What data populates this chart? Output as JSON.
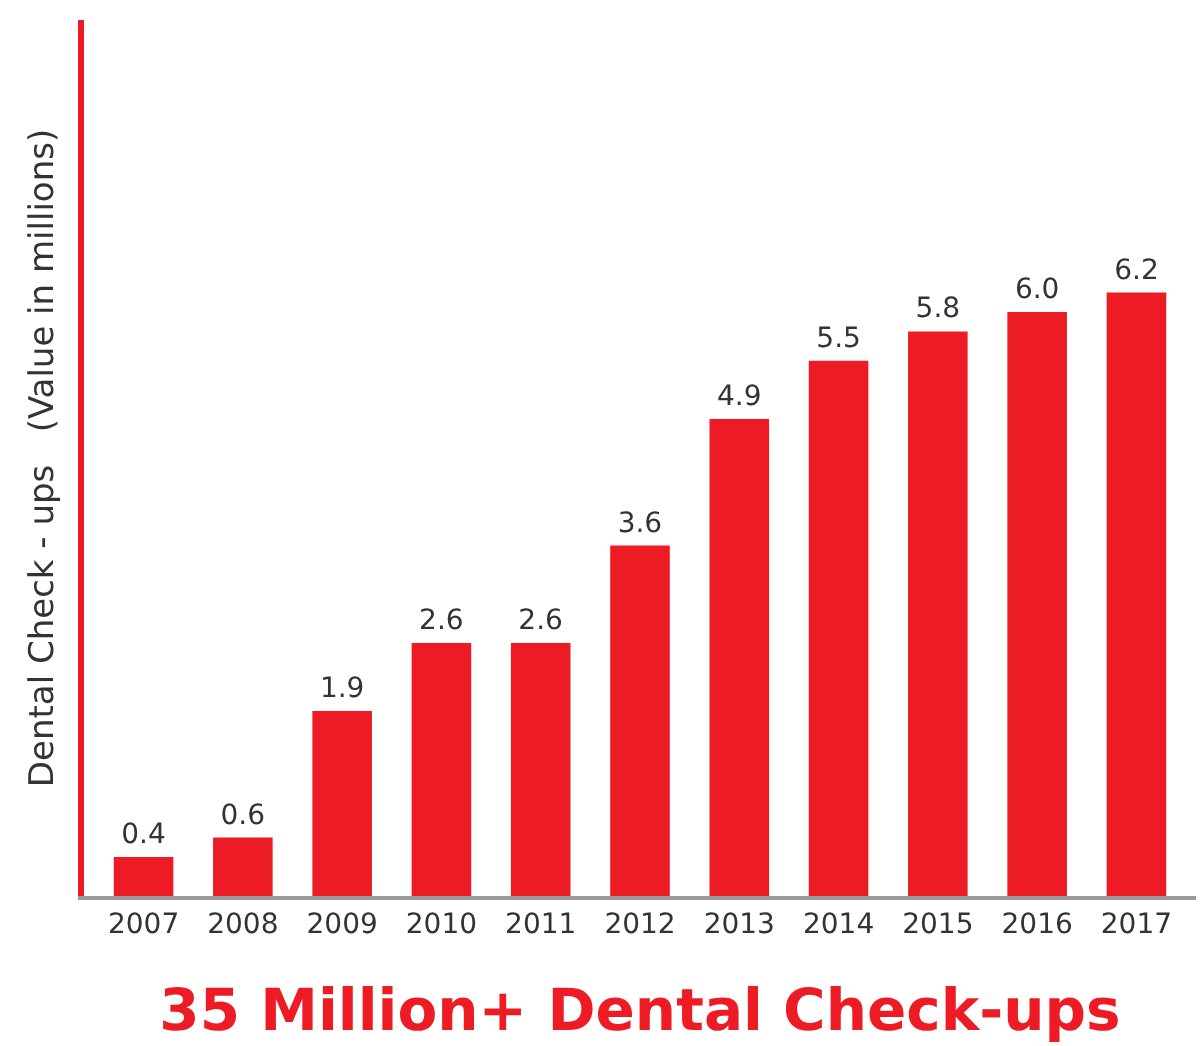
{
  "chart_data": {
    "type": "bar",
    "title": "35 Million+ Dental Check-ups",
    "ylabel": "Dental Check - ups   (Value in millions)",
    "categories": [
      "2007",
      "2008",
      "2009",
      "2010",
      "2011",
      "2012",
      "2013",
      "2014",
      "2015",
      "2016",
      "2017"
    ],
    "values": [
      0.4,
      0.6,
      1.9,
      2.6,
      2.6,
      3.6,
      4.9,
      5.5,
      5.8,
      6.0,
      6.2
    ],
    "value_labels": [
      "0.4",
      "0.6",
      "1.9",
      "2.6",
      "2.6",
      "3.6",
      "4.9",
      "5.5",
      "5.8",
      "6.0",
      "6.2"
    ],
    "color": "#ed1c24",
    "ylim": [
      0,
      9
    ],
    "grid": false
  }
}
